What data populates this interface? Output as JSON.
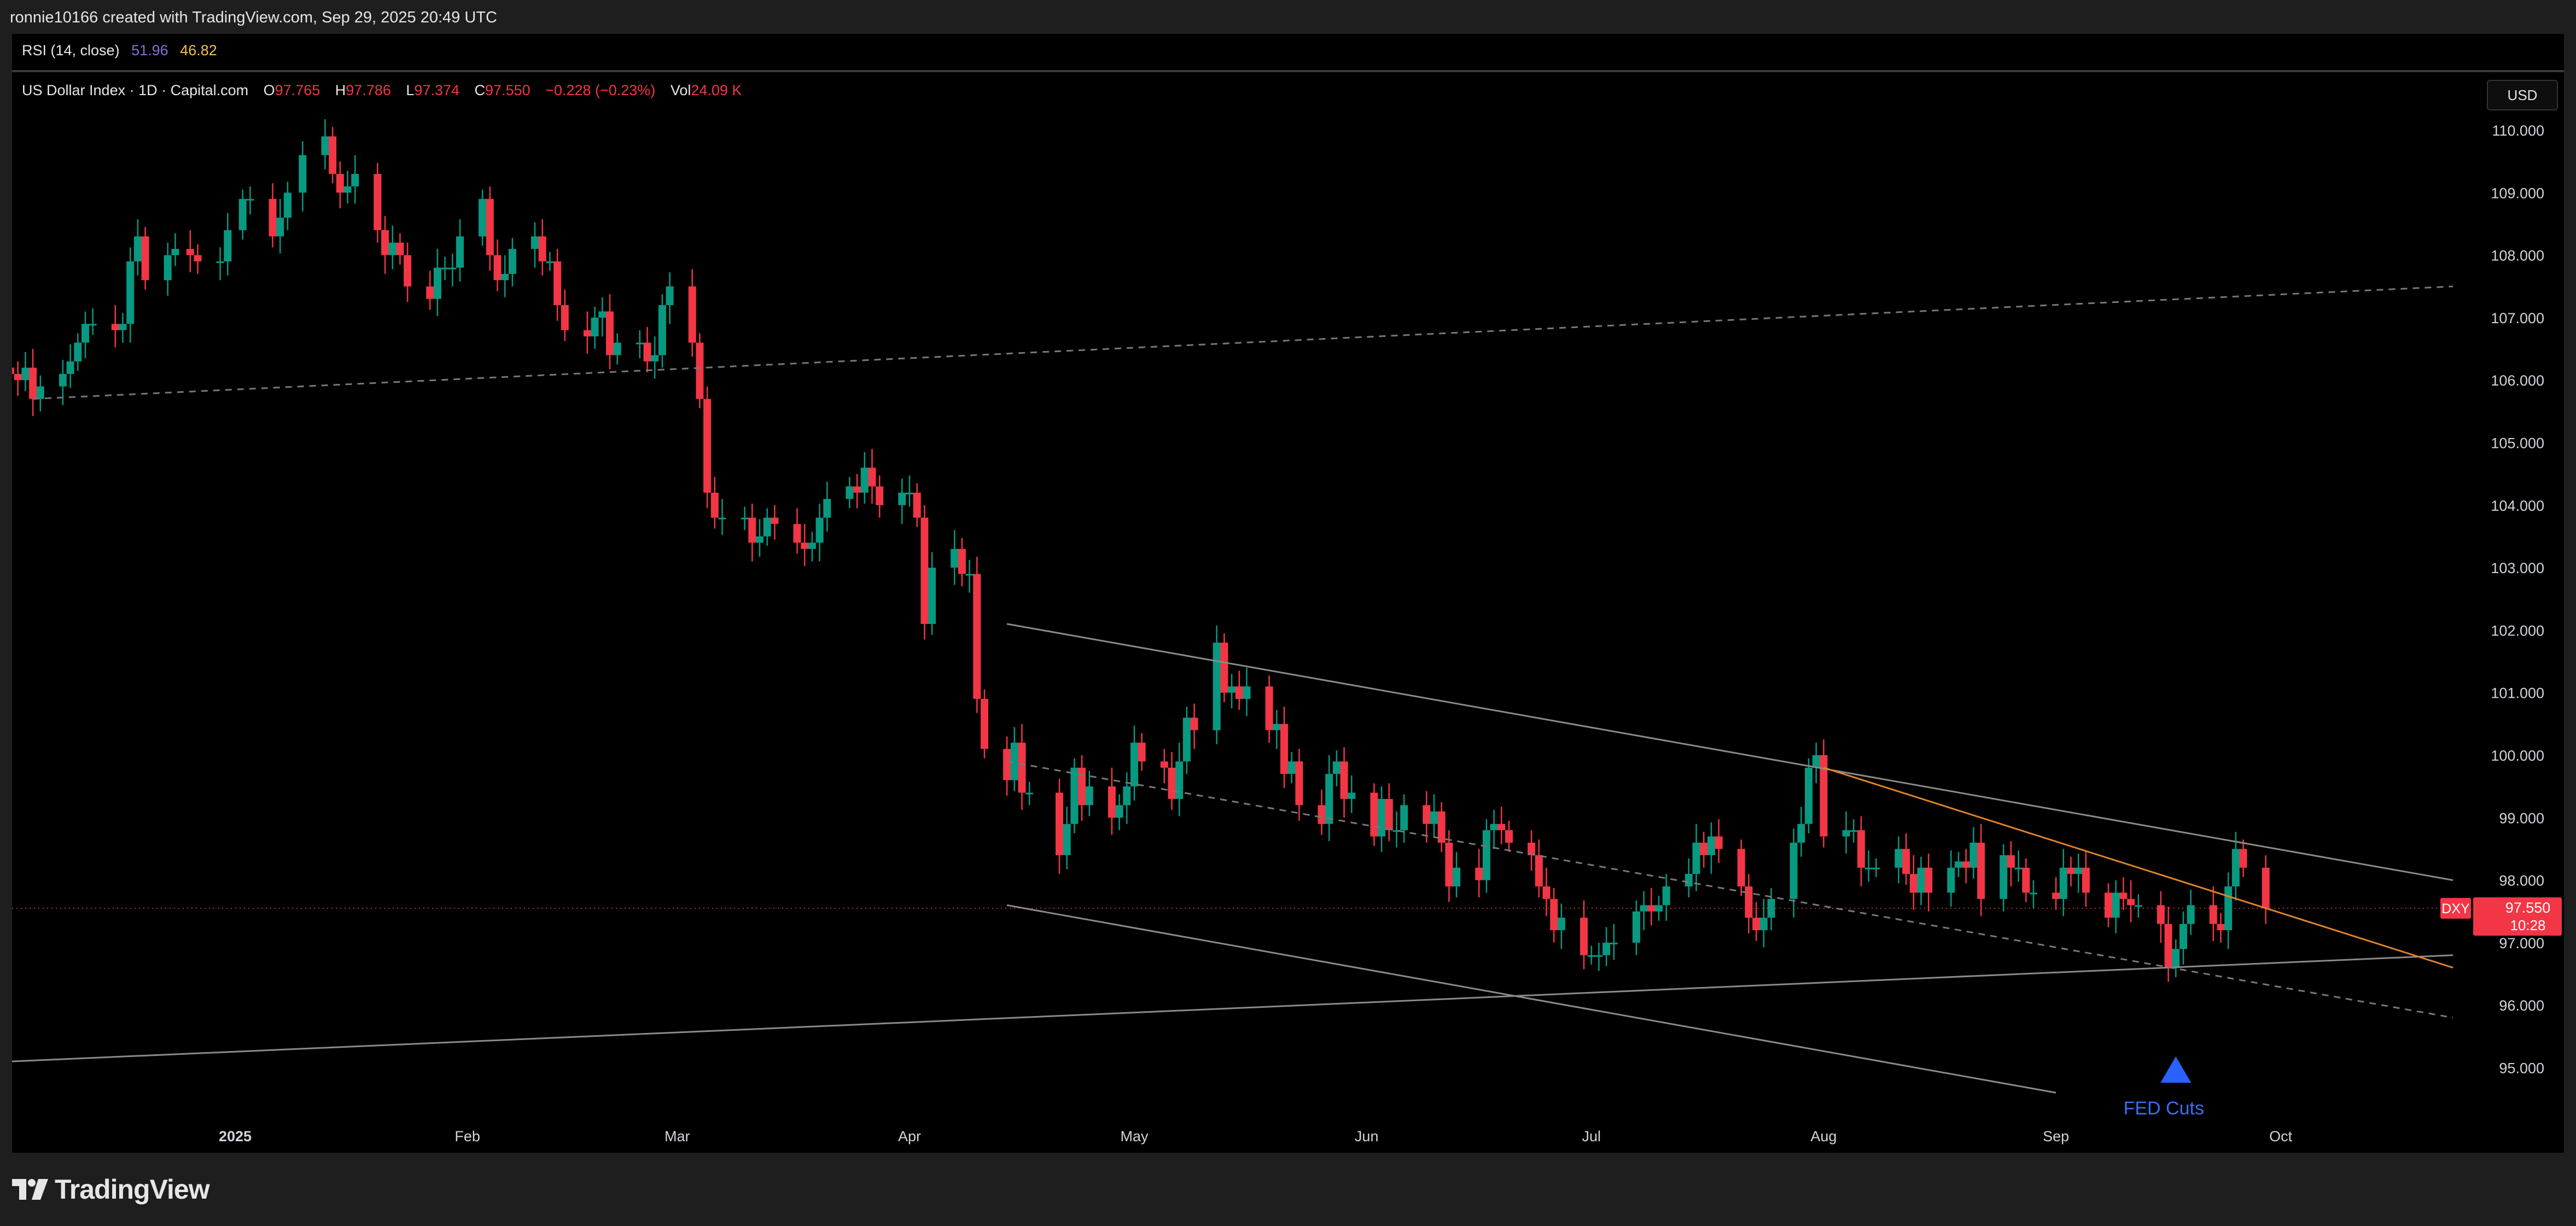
{
  "header": {
    "caption": "ronnie10166 created with TradingView.com, Sep 29, 2025 20:49 UTC"
  },
  "rsi": {
    "label": "RSI (14, close)",
    "value1": "51.96",
    "value2": "46.82"
  },
  "legend": {
    "symbol": "US Dollar Index · 1D · Capital.com",
    "o_label": "O",
    "o": "97.765",
    "h_label": "H",
    "h": "97.786",
    "l_label": "L",
    "l": "97.374",
    "c_label": "C",
    "c": "97.550",
    "change": "−0.228 (−0.23%)",
    "vol_label": "Vol",
    "vol": "24.09 K"
  },
  "currency_button": "USD",
  "price_tag": {
    "symbol": "DXY",
    "price": "97.550",
    "countdown": "10:28"
  },
  "annotation": {
    "text": "FED Cuts"
  },
  "brand": {
    "name": "TradingView"
  },
  "colors": {
    "up": "#089981",
    "down": "#f23645",
    "background": "#000000",
    "trendline": "#8a8a8a",
    "orange_line": "#e0822a",
    "arrow": "#2962ff"
  },
  "chart_data": {
    "type": "candlestick",
    "symbol": "DXY",
    "timeframe": "1D",
    "ylim": [
      94.6,
      110.5
    ],
    "y_ticks": [
      "110.000",
      "109.000",
      "108.000",
      "107.000",
      "106.000",
      "105.000",
      "104.000",
      "103.000",
      "102.000",
      "101.000",
      "100.000",
      "99.000",
      "98.000",
      "97.000",
      "96.000",
      "95.000"
    ],
    "x_ticks": [
      {
        "label": "2025",
        "date": "2025-01-01"
      },
      {
        "label": "Feb",
        "date": "2025-02-01"
      },
      {
        "label": "Mar",
        "date": "2025-03-01"
      },
      {
        "label": "Apr",
        "date": "2025-04-01"
      },
      {
        "label": "May",
        "date": "2025-05-01"
      },
      {
        "label": "Jun",
        "date": "2025-06-01"
      },
      {
        "label": "Jul",
        "date": "2025-07-01"
      },
      {
        "label": "Aug",
        "date": "2025-08-01"
      },
      {
        "label": "Sep",
        "date": "2025-09-01"
      },
      {
        "label": "Oct",
        "date": "2025-10-01"
      }
    ],
    "last_price": 97.55,
    "closes": [
      [
        "2024-12-02",
        106.1
      ],
      [
        "2024-12-03",
        106.0
      ],
      [
        "2024-12-04",
        106.2
      ],
      [
        "2024-12-05",
        105.7
      ],
      [
        "2024-12-06",
        105.9
      ],
      [
        "2024-12-09",
        106.1
      ],
      [
        "2024-12-10",
        106.3
      ],
      [
        "2024-12-11",
        106.6
      ],
      [
        "2024-12-12",
        106.9
      ],
      [
        "2024-12-13",
        106.9
      ],
      [
        "2024-12-16",
        106.8
      ],
      [
        "2024-12-17",
        106.9
      ],
      [
        "2024-12-18",
        107.9
      ],
      [
        "2024-12-19",
        108.3
      ],
      [
        "2024-12-20",
        107.6
      ],
      [
        "2024-12-23",
        108.0
      ],
      [
        "2024-12-24",
        108.1
      ],
      [
        "2024-12-26",
        108.0
      ],
      [
        "2024-12-27",
        107.9
      ],
      [
        "2024-12-30",
        107.9
      ],
      [
        "2024-12-31",
        108.4
      ],
      [
        "2025-01-02",
        108.9
      ],
      [
        "2025-01-03",
        108.9
      ],
      [
        "2025-01-06",
        108.3
      ],
      [
        "2025-01-07",
        108.6
      ],
      [
        "2025-01-08",
        109.0
      ],
      [
        "2025-01-10",
        109.6
      ],
      [
        "2025-01-13",
        109.9
      ],
      [
        "2025-01-14",
        109.3
      ],
      [
        "2025-01-15",
        109.0
      ],
      [
        "2025-01-16",
        109.1
      ],
      [
        "2025-01-17",
        109.3
      ],
      [
        "2025-01-20",
        108.4
      ],
      [
        "2025-01-21",
        108.0
      ],
      [
        "2025-01-22",
        108.2
      ],
      [
        "2025-01-23",
        108.0
      ],
      [
        "2025-01-24",
        107.5
      ],
      [
        "2025-01-27",
        107.3
      ],
      [
        "2025-01-28",
        107.8
      ],
      [
        "2025-01-29",
        107.8
      ],
      [
        "2025-01-30",
        107.8
      ],
      [
        "2025-01-31",
        108.3
      ],
      [
        "2025-02-03",
        108.9
      ],
      [
        "2025-02-04",
        108.0
      ],
      [
        "2025-02-05",
        107.6
      ],
      [
        "2025-02-06",
        107.7
      ],
      [
        "2025-02-07",
        108.1
      ],
      [
        "2025-02-10",
        108.3
      ],
      [
        "2025-02-11",
        107.9
      ],
      [
        "2025-02-12",
        107.9
      ],
      [
        "2025-02-13",
        107.2
      ],
      [
        "2025-02-14",
        106.8
      ],
      [
        "2025-02-17",
        106.7
      ],
      [
        "2025-02-18",
        107.0
      ],
      [
        "2025-02-19",
        107.1
      ],
      [
        "2025-02-20",
        106.4
      ],
      [
        "2025-02-21",
        106.6
      ],
      [
        "2025-02-24",
        106.6
      ],
      [
        "2025-02-25",
        106.3
      ],
      [
        "2025-02-26",
        106.4
      ],
      [
        "2025-02-27",
        107.2
      ],
      [
        "2025-02-28",
        107.5
      ],
      [
        "2025-03-03",
        106.6
      ],
      [
        "2025-03-04",
        105.7
      ],
      [
        "2025-03-05",
        104.2
      ],
      [
        "2025-03-06",
        103.8
      ],
      [
        "2025-03-07",
        103.8
      ],
      [
        "2025-03-10",
        103.8
      ],
      [
        "2025-03-11",
        103.4
      ],
      [
        "2025-03-12",
        103.5
      ],
      [
        "2025-03-13",
        103.8
      ],
      [
        "2025-03-14",
        103.7
      ],
      [
        "2025-03-17",
        103.4
      ],
      [
        "2025-03-18",
        103.3
      ],
      [
        "2025-03-19",
        103.4
      ],
      [
        "2025-03-20",
        103.8
      ],
      [
        "2025-03-21",
        104.1
      ],
      [
        "2025-03-24",
        104.3
      ],
      [
        "2025-03-25",
        104.2
      ],
      [
        "2025-03-26",
        104.6
      ],
      [
        "2025-03-27",
        104.3
      ],
      [
        "2025-03-28",
        104.0
      ],
      [
        "2025-03-31",
        104.2
      ],
      [
        "2025-04-01",
        104.2
      ],
      [
        "2025-04-02",
        103.8
      ],
      [
        "2025-04-03",
        102.1
      ],
      [
        "2025-04-04",
        103.0
      ],
      [
        "2025-04-07",
        103.3
      ],
      [
        "2025-04-08",
        102.9
      ],
      [
        "2025-04-09",
        102.9
      ],
      [
        "2025-04-10",
        100.9
      ],
      [
        "2025-04-11",
        100.1
      ],
      [
        "2025-04-14",
        99.6
      ],
      [
        "2025-04-15",
        100.2
      ],
      [
        "2025-04-16",
        99.4
      ],
      [
        "2025-04-17",
        99.4
      ],
      [
        "2025-04-21",
        98.4
      ],
      [
        "2025-04-22",
        98.9
      ],
      [
        "2025-04-23",
        99.8
      ],
      [
        "2025-04-24",
        99.2
      ],
      [
        "2025-04-25",
        99.5
      ],
      [
        "2025-04-28",
        99.0
      ],
      [
        "2025-04-29",
        99.2
      ],
      [
        "2025-04-30",
        99.5
      ],
      [
        "2025-05-01",
        100.2
      ],
      [
        "2025-05-02",
        99.9
      ],
      [
        "2025-05-05",
        99.8
      ],
      [
        "2025-05-06",
        99.3
      ],
      [
        "2025-05-07",
        99.9
      ],
      [
        "2025-05-08",
        100.6
      ],
      [
        "2025-05-09",
        100.4
      ],
      [
        "2025-05-12",
        101.8
      ],
      [
        "2025-05-13",
        101.0
      ],
      [
        "2025-05-14",
        101.1
      ],
      [
        "2025-05-15",
        100.9
      ],
      [
        "2025-05-16",
        101.1
      ],
      [
        "2025-05-19",
        100.4
      ],
      [
        "2025-05-20",
        100.5
      ],
      [
        "2025-05-21",
        99.7
      ],
      [
        "2025-05-22",
        99.9
      ],
      [
        "2025-05-23",
        99.2
      ],
      [
        "2025-05-26",
        98.9
      ],
      [
        "2025-05-27",
        99.7
      ],
      [
        "2025-05-28",
        99.9
      ],
      [
        "2025-05-29",
        99.3
      ],
      [
        "2025-05-30",
        99.4
      ],
      [
        "2025-06-02",
        98.7
      ],
      [
        "2025-06-03",
        99.3
      ],
      [
        "2025-06-04",
        98.8
      ],
      [
        "2025-06-05",
        98.8
      ],
      [
        "2025-06-06",
        99.2
      ],
      [
        "2025-06-09",
        98.9
      ],
      [
        "2025-06-10",
        99.1
      ],
      [
        "2025-06-11",
        98.6
      ],
      [
        "2025-06-12",
        97.9
      ],
      [
        "2025-06-13",
        98.2
      ],
      [
        "2025-06-16",
        98.0
      ],
      [
        "2025-06-17",
        98.8
      ],
      [
        "2025-06-18",
        98.9
      ],
      [
        "2025-06-19",
        98.8
      ],
      [
        "2025-06-20",
        98.6
      ],
      [
        "2025-06-23",
        98.4
      ],
      [
        "2025-06-24",
        97.9
      ],
      [
        "2025-06-25",
        97.7
      ],
      [
        "2025-06-26",
        97.2
      ],
      [
        "2025-06-27",
        97.4
      ],
      [
        "2025-06-30",
        96.8
      ],
      [
        "2025-07-01",
        96.8
      ],
      [
        "2025-07-02",
        96.8
      ],
      [
        "2025-07-03",
        97.0
      ],
      [
        "2025-07-04",
        97.0
      ],
      [
        "2025-07-07",
        97.5
      ],
      [
        "2025-07-08",
        97.6
      ],
      [
        "2025-07-09",
        97.5
      ],
      [
        "2025-07-10",
        97.6
      ],
      [
        "2025-07-11",
        97.9
      ],
      [
        "2025-07-14",
        98.1
      ],
      [
        "2025-07-15",
        98.6
      ],
      [
        "2025-07-16",
        98.4
      ],
      [
        "2025-07-17",
        98.7
      ],
      [
        "2025-07-18",
        98.5
      ],
      [
        "2025-07-21",
        97.9
      ],
      [
        "2025-07-22",
        97.4
      ],
      [
        "2025-07-23",
        97.2
      ],
      [
        "2025-07-24",
        97.4
      ],
      [
        "2025-07-25",
        97.7
      ],
      [
        "2025-07-28",
        98.6
      ],
      [
        "2025-07-29",
        98.9
      ],
      [
        "2025-07-30",
        99.8
      ],
      [
        "2025-07-31",
        100.0
      ],
      [
        "2025-08-01",
        98.7
      ],
      [
        "2025-08-04",
        98.8
      ],
      [
        "2025-08-05",
        98.8
      ],
      [
        "2025-08-06",
        98.2
      ],
      [
        "2025-08-07",
        98.2
      ],
      [
        "2025-08-08",
        98.2
      ],
      [
        "2025-08-11",
        98.5
      ],
      [
        "2025-08-12",
        98.1
      ],
      [
        "2025-08-13",
        97.8
      ],
      [
        "2025-08-14",
        98.2
      ],
      [
        "2025-08-15",
        97.8
      ],
      [
        "2025-08-18",
        98.2
      ],
      [
        "2025-08-19",
        98.3
      ],
      [
        "2025-08-20",
        98.2
      ],
      [
        "2025-08-21",
        98.6
      ],
      [
        "2025-08-22",
        97.7
      ],
      [
        "2025-08-25",
        98.4
      ],
      [
        "2025-08-26",
        98.2
      ],
      [
        "2025-08-27",
        98.2
      ],
      [
        "2025-08-28",
        97.8
      ],
      [
        "2025-08-29",
        97.8
      ],
      [
        "2025-09-01",
        97.7
      ],
      [
        "2025-09-02",
        98.2
      ],
      [
        "2025-09-03",
        98.1
      ],
      [
        "2025-09-04",
        98.2
      ],
      [
        "2025-09-05",
        97.8
      ],
      [
        "2025-09-08",
        97.4
      ],
      [
        "2025-09-09",
        97.8
      ],
      [
        "2025-09-10",
        97.7
      ],
      [
        "2025-09-11",
        97.6
      ],
      [
        "2025-09-12",
        97.6
      ],
      [
        "2025-09-15",
        97.3
      ],
      [
        "2025-09-16",
        96.6
      ],
      [
        "2025-09-17",
        96.9
      ],
      [
        "2025-09-18",
        97.3
      ],
      [
        "2025-09-19",
        97.6
      ],
      [
        "2025-09-22",
        97.3
      ],
      [
        "2025-09-23",
        97.2
      ],
      [
        "2025-09-24",
        97.9
      ],
      [
        "2025-09-25",
        98.5
      ],
      [
        "2025-09-26",
        98.2
      ],
      [
        "2025-09-29",
        97.55
      ]
    ],
    "trendlines": [
      {
        "style": "solid",
        "color": "#8a8a8a",
        "from": [
          "2025-04-14",
          102.1
        ],
        "to": [
          "2025-10-24",
          98.0
        ]
      },
      {
        "style": "solid",
        "color": "#8a8a8a",
        "from": [
          "2025-04-14",
          97.6
        ],
        "to": [
          "2025-09-01",
          94.6
        ]
      },
      {
        "style": "solid",
        "color": "#8a8a8a",
        "from": [
          "2024-12-02",
          95.1
        ],
        "to": [
          "2025-10-24",
          96.8
        ]
      },
      {
        "style": "dashed",
        "color": "#777777",
        "from": [
          "2024-12-05",
          105.7
        ],
        "to": [
          "2025-10-24",
          107.5
        ]
      },
      {
        "style": "dashed",
        "color": "#777777",
        "from": [
          "2025-04-14",
          99.9
        ],
        "to": [
          "2025-10-24",
          95.8
        ]
      },
      {
        "style": "solid",
        "color": "#e0822a",
        "from": [
          "2025-08-01",
          99.8
        ],
        "to": [
          "2025-10-24",
          96.6
        ]
      }
    ],
    "annotations": [
      {
        "text": "FED Cuts",
        "date": "2025-09-17",
        "marker": "up-arrow"
      }
    ]
  }
}
